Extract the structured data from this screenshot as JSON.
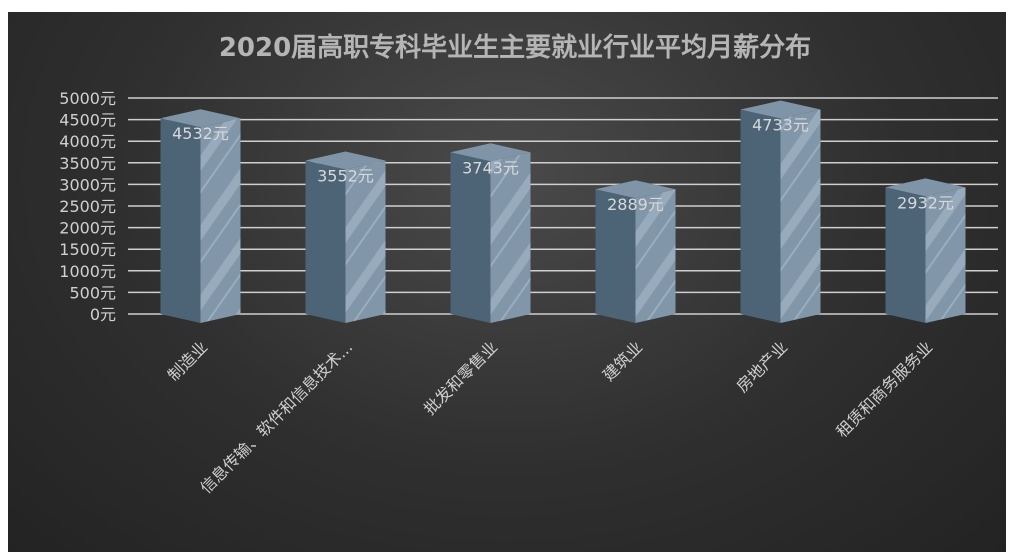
{
  "chart_data": {
    "type": "bar",
    "title": "2020届高职专科毕业生主要就业行业平均月薪分布",
    "categories": [
      "制造业",
      "信息传输、软件和信息技术...",
      "批发和零售业",
      "建筑业",
      "房地产业",
      "租赁和商务服务业"
    ],
    "values": [
      4532,
      3552,
      3743,
      2889,
      4733,
      2932
    ],
    "value_labels": [
      "4532元",
      "3552元",
      "3743元",
      "2889元",
      "4733元",
      "2932元"
    ],
    "yticks": [
      "0元",
      "500元",
      "1000元",
      "1500元",
      "2000元",
      "2500元",
      "3000元",
      "3500元",
      "4000元",
      "4500元",
      "5000元"
    ],
    "ylim": [
      0,
      5000
    ],
    "grid": true,
    "xlabel": "",
    "ylabel": "",
    "colors": {
      "bar_front": "#4d6477",
      "bar_side": "#8197a9",
      "bar_top": "#7f94a6",
      "stripe": "#a9bccb"
    }
  }
}
